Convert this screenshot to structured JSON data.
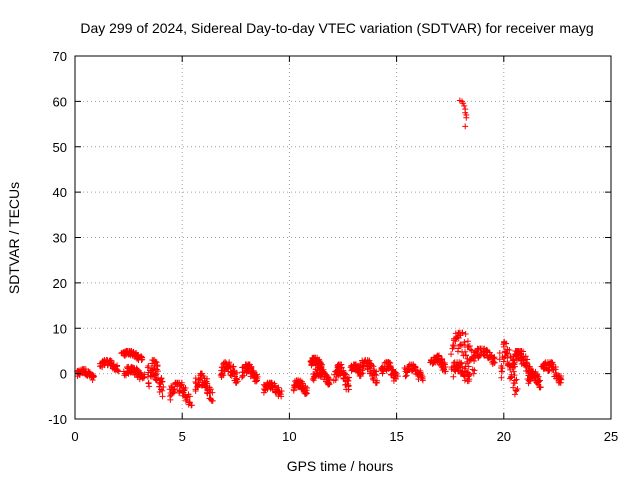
{
  "chart_data": {
    "type": "scatter",
    "title": "Day 299 of 2024, Sidereal Day-to-day VTEC variation (SDTVAR) for receiver mayg",
    "xlabel": "GPS time / hours",
    "ylabel": "SDTVAR / TECUs",
    "xlim": [
      0,
      25
    ],
    "ylim": [
      -10,
      70
    ],
    "xticks": [
      0,
      5,
      10,
      15,
      20,
      25
    ],
    "yticks": [
      -10,
      0,
      10,
      20,
      30,
      40,
      50,
      60,
      70
    ],
    "xtick_labels": [
      "0",
      "5",
      "10",
      "15",
      "20",
      "25"
    ],
    "ytick_labels": [
      "-10",
      "0",
      "10",
      "20",
      "30",
      "40",
      "50",
      "60",
      "70"
    ],
    "grid": true,
    "marker": "+",
    "color": "#ff0000",
    "clusters": [
      {
        "x": [
          0.1,
          0.9
        ],
        "y": [
          -1.5,
          1.0
        ]
      },
      {
        "x": [
          1.2,
          2.0
        ],
        "y": [
          0.5,
          3.0
        ]
      },
      {
        "x": [
          2.2,
          3.1
        ],
        "y": [
          3.0,
          5.0
        ]
      },
      {
        "x": [
          2.3,
          3.2
        ],
        "y": [
          -1.5,
          1.5
        ]
      },
      {
        "x": [
          3.4,
          4.1
        ],
        "y": [
          -5.0,
          3.0
        ]
      },
      {
        "x": [
          4.4,
          5.4
        ],
        "y": [
          -7.0,
          -2.0
        ]
      },
      {
        "x": [
          5.6,
          6.4
        ],
        "y": [
          -6.0,
          0.0
        ]
      },
      {
        "x": [
          6.8,
          7.6
        ],
        "y": [
          -2.0,
          2.5
        ]
      },
      {
        "x": [
          7.8,
          8.5
        ],
        "y": [
          -2.0,
          2.0
        ]
      },
      {
        "x": [
          8.8,
          9.6
        ],
        "y": [
          -5.0,
          -2.0
        ]
      },
      {
        "x": [
          10.2,
          10.8
        ],
        "y": [
          -4.5,
          -1.5
        ]
      },
      {
        "x": [
          11.0,
          11.5
        ],
        "y": [
          1.0,
          3.5
        ]
      },
      {
        "x": [
          11.1,
          11.9
        ],
        "y": [
          -2.5,
          1.0
        ]
      },
      {
        "x": [
          12.1,
          12.8
        ],
        "y": [
          -3.5,
          2.0
        ]
      },
      {
        "x": [
          12.9,
          13.3
        ],
        "y": [
          0.0,
          2.0
        ]
      },
      {
        "x": [
          13.3,
          14.1
        ],
        "y": [
          -2.0,
          3.0
        ]
      },
      {
        "x": [
          14.3,
          15.0
        ],
        "y": [
          -2.0,
          2.5
        ]
      },
      {
        "x": [
          15.4,
          16.2
        ],
        "y": [
          -1.5,
          2.0
        ]
      },
      {
        "x": [
          16.6,
          17.3
        ],
        "y": [
          0.5,
          4.0
        ]
      },
      {
        "x": [
          17.6,
          18.6
        ],
        "y": [
          0.0,
          9.0
        ]
      },
      {
        "x": [
          17.6,
          18.4
        ],
        "y": [
          -2.0,
          2.5
        ]
      },
      {
        "x": [
          18.6,
          19.6
        ],
        "y": [
          2.0,
          5.5
        ]
      },
      {
        "x": [
          19.8,
          20.6
        ],
        "y": [
          -5.0,
          7.0
        ]
      },
      {
        "x": [
          20.4,
          21.2
        ],
        "y": [
          0.0,
          5.0
        ]
      },
      {
        "x": [
          21.1,
          21.7
        ],
        "y": [
          -3.0,
          0.5
        ]
      },
      {
        "x": [
          21.8,
          22.7
        ],
        "y": [
          -2.0,
          2.5
        ]
      }
    ],
    "outlier_points": {
      "x": [
        17.95,
        18.05,
        18.1,
        18.15,
        18.2,
        18.2,
        18.25,
        18.25,
        18.2
      ],
      "y": [
        60.2,
        60.0,
        59.6,
        59.0,
        58.3,
        57.5,
        57.0,
        56.4,
        54.5
      ]
    }
  }
}
